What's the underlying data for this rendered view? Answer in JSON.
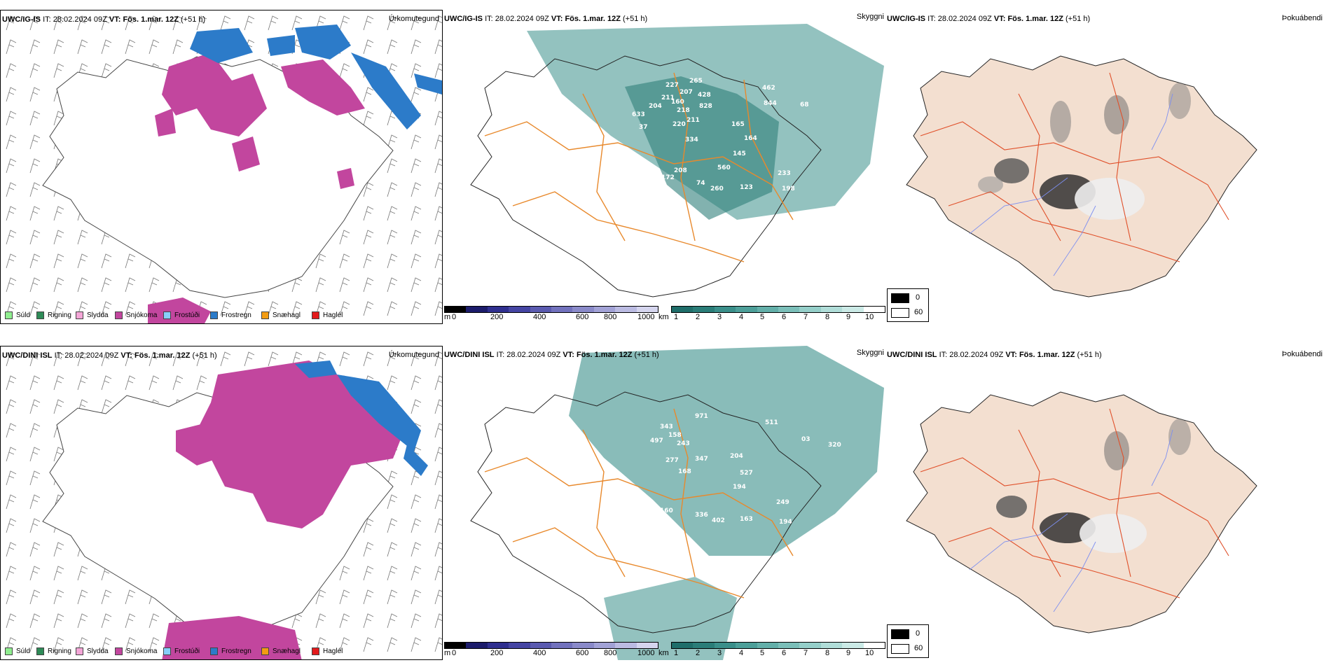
{
  "rows": [
    {
      "model": "UWC/IG-IS",
      "it_label": "IT:",
      "it_value": "28.02.2024 09Z",
      "vt_label": "VT:",
      "vt_value": "Fös. 1.mar. 12Z",
      "lead": "(+51 h)",
      "cloud_labels": [
        "227",
        "207",
        "265",
        "211",
        "160",
        "428",
        "204",
        "218",
        "828",
        "633",
        "211",
        "220",
        "37",
        "334",
        "462",
        "844",
        "68",
        "165",
        "164",
        "145",
        "560",
        "211",
        "172",
        "208",
        "233",
        "198",
        "74",
        "260",
        "123"
      ]
    },
    {
      "model": "UWC/DINI ISL",
      "it_label": "IT:",
      "it_value": "28.02.2024 09Z",
      "vt_label": "VT:",
      "vt_value": "Fös. 1.mar. 12Z",
      "lead": "(+51 h)",
      "cloud_labels": [
        "343",
        "971",
        "158",
        "243",
        "497",
        "277",
        "347",
        "168",
        "511",
        "03",
        "320",
        "204",
        "527",
        "194",
        "249",
        "298",
        "160",
        "336",
        "402",
        "163",
        "194"
      ]
    }
  ],
  "panel_titles": {
    "precip_type": "Úrkomutegund",
    "visibility": "Skyggni",
    "fog": "Þokuábendi"
  },
  "precip_legend": [
    {
      "label": "Súld",
      "color": "#90ee90"
    },
    {
      "label": "Rigning",
      "color": "#2e8b57"
    },
    {
      "label": "Slydda",
      "color": "#f4a6d7"
    },
    {
      "label": "Snjókoma",
      "color": "#c2469e"
    },
    {
      "label": "Frostúði",
      "color": "#87cefa"
    },
    {
      "label": "Frostregn",
      "color": "#2c7bc9"
    },
    {
      "label": "Snæhagl",
      "color": "#f39c12"
    },
    {
      "label": "Haglél",
      "color": "#e31a1c"
    }
  ],
  "cloudbase_scale": {
    "unit": "m",
    "ticks": [
      "0",
      "200",
      "400",
      "600",
      "800",
      "1000"
    ]
  },
  "visibility_scale": {
    "unit": "km",
    "ticks": [
      "1",
      "2",
      "3",
      "4",
      "5",
      "6",
      "7",
      "8",
      "9",
      "10"
    ]
  },
  "fog_key": [
    "0",
    "60"
  ],
  "colors": {
    "snow": "#c2469e",
    "freezing_rain": "#2c7bc9",
    "visibility_teal": "#3a8f8a",
    "roads_orange": "#e8892c",
    "fog_land": "#f3dfd0",
    "rivers_blue": "#7d8ff0"
  }
}
